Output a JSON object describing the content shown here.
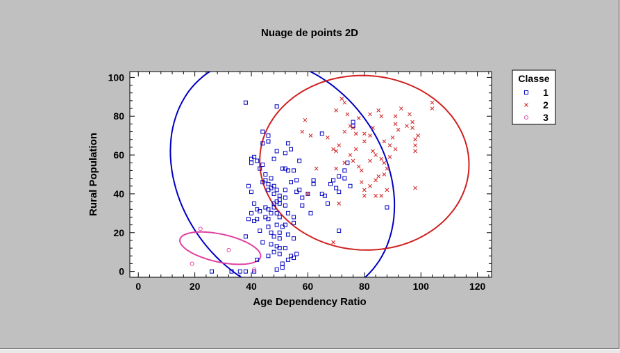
{
  "chart_data": {
    "type": "scatter",
    "title": "Nuage de points 2D",
    "xlabel": "Age Dependency Ratio",
    "ylabel": "Rural Population",
    "xlim": [
      -3,
      125
    ],
    "ylim": [
      -3,
      103
    ],
    "xticks": [
      0,
      20,
      40,
      60,
      80,
      100,
      120
    ],
    "yticks": [
      0,
      20,
      40,
      60,
      80,
      100
    ],
    "grid": false,
    "legend": {
      "title": "Classe",
      "position": "right"
    },
    "series": [
      {
        "name": "1",
        "marker": "square",
        "color": "#0000c0",
        "points": [
          [
            38,
            87
          ],
          [
            49,
            85
          ],
          [
            44,
            72
          ],
          [
            46,
            70
          ],
          [
            46,
            67
          ],
          [
            44,
            66
          ],
          [
            53,
            66
          ],
          [
            54,
            63
          ],
          [
            49,
            62
          ],
          [
            52,
            61
          ],
          [
            57,
            57
          ],
          [
            40,
            58
          ],
          [
            41,
            59
          ],
          [
            42,
            57
          ],
          [
            43,
            53
          ],
          [
            44,
            55
          ],
          [
            40,
            56
          ],
          [
            48,
            58
          ],
          [
            51,
            53
          ],
          [
            53,
            52
          ],
          [
            55,
            52
          ],
          [
            45,
            50
          ],
          [
            45,
            47
          ],
          [
            44,
            46
          ],
          [
            46,
            45
          ],
          [
            48,
            44
          ],
          [
            47,
            43
          ],
          [
            46,
            42
          ],
          [
            49,
            42
          ],
          [
            52,
            42
          ],
          [
            48,
            40
          ],
          [
            50,
            39
          ],
          [
            52,
            38
          ],
          [
            50,
            37
          ],
          [
            49,
            36
          ],
          [
            48,
            35
          ],
          [
            50,
            35
          ],
          [
            48,
            33
          ],
          [
            45,
            33
          ],
          [
            46,
            32
          ],
          [
            42,
            32
          ],
          [
            43,
            31
          ],
          [
            47,
            30
          ],
          [
            49,
            30
          ],
          [
            53,
            30
          ],
          [
            50,
            28
          ],
          [
            45,
            28
          ],
          [
            46,
            27
          ],
          [
            42,
            27
          ],
          [
            41,
            26
          ],
          [
            39,
            27
          ],
          [
            49,
            24
          ],
          [
            52,
            24
          ],
          [
            55,
            25
          ],
          [
            51,
            23
          ],
          [
            46,
            23
          ],
          [
            43,
            21
          ],
          [
            47,
            20
          ],
          [
            50,
            20
          ],
          [
            53,
            19
          ],
          [
            48,
            18
          ],
          [
            50,
            17
          ],
          [
            55,
            17
          ],
          [
            44,
            15
          ],
          [
            47,
            14
          ],
          [
            49,
            13
          ],
          [
            50,
            12
          ],
          [
            52,
            12
          ],
          [
            48,
            10
          ],
          [
            50,
            9
          ],
          [
            56,
            9
          ],
          [
            46,
            8
          ],
          [
            54,
            8
          ],
          [
            55,
            7
          ],
          [
            53,
            6
          ],
          [
            42,
            6
          ],
          [
            51,
            4
          ],
          [
            51,
            2
          ],
          [
            49,
            1
          ],
          [
            38,
            18
          ],
          [
            39,
            44
          ],
          [
            40,
            41
          ],
          [
            41,
            35
          ],
          [
            40,
            30
          ],
          [
            56,
            41
          ],
          [
            58,
            38
          ],
          [
            61,
            30
          ],
          [
            58,
            34
          ],
          [
            57,
            42
          ],
          [
            60,
            40
          ],
          [
            62,
            45
          ],
          [
            62,
            47
          ],
          [
            65,
            40
          ],
          [
            66,
            39
          ],
          [
            67,
            35
          ],
          [
            68,
            45
          ],
          [
            69,
            47
          ],
          [
            70,
            43
          ],
          [
            71,
            41
          ],
          [
            71,
            49
          ],
          [
            73,
            48
          ],
          [
            75,
            44
          ],
          [
            73,
            52
          ],
          [
            74,
            56
          ],
          [
            76,
            77
          ],
          [
            76,
            75
          ],
          [
            65,
            71
          ],
          [
            71,
            21
          ],
          [
            88,
            33
          ],
          [
            55,
            28
          ],
          [
            26,
            0
          ],
          [
            33,
            0
          ],
          [
            36,
            0
          ],
          [
            38,
            0
          ],
          [
            41,
            0
          ],
          [
            52,
            34
          ],
          [
            54,
            46
          ],
          [
            47,
            48
          ],
          [
            52,
            53
          ],
          [
            56,
            47
          ]
        ]
      },
      {
        "name": "2",
        "marker": "x",
        "color": "#d02020",
        "points": [
          [
            72,
            89
          ],
          [
            73,
            87
          ],
          [
            70,
            83
          ],
          [
            74,
            81
          ],
          [
            78,
            79
          ],
          [
            82,
            81
          ],
          [
            85,
            83
          ],
          [
            86,
            80
          ],
          [
            83,
            74
          ],
          [
            80,
            71
          ],
          [
            75,
            75
          ],
          [
            76,
            74
          ],
          [
            73,
            72
          ],
          [
            67,
            69
          ],
          [
            58,
            72
          ],
          [
            59,
            78
          ],
          [
            61,
            70
          ],
          [
            69,
            63
          ],
          [
            70,
            62
          ],
          [
            75,
            60
          ],
          [
            76,
            57
          ],
          [
            77,
            63
          ],
          [
            78,
            54
          ],
          [
            79,
            52
          ],
          [
            82,
            57
          ],
          [
            83,
            62
          ],
          [
            84,
            60
          ],
          [
            86,
            58
          ],
          [
            87,
            56
          ],
          [
            88,
            53
          ],
          [
            85,
            49
          ],
          [
            84,
            47
          ],
          [
            82,
            44
          ],
          [
            80,
            42
          ],
          [
            80,
            39
          ],
          [
            84,
            39
          ],
          [
            86,
            39
          ],
          [
            88,
            42
          ],
          [
            91,
            76
          ],
          [
            91,
            80
          ],
          [
            93,
            84
          ],
          [
            95,
            75
          ],
          [
            96,
            81
          ],
          [
            97,
            74
          ],
          [
            98,
            68
          ],
          [
            98,
            65
          ],
          [
            98,
            62
          ],
          [
            99,
            70
          ],
          [
            104,
            87
          ],
          [
            104,
            84
          ],
          [
            90,
            69
          ],
          [
            89,
            65
          ],
          [
            87,
            67
          ],
          [
            89,
            59
          ],
          [
            91,
            63
          ],
          [
            92,
            73
          ],
          [
            97,
            77
          ],
          [
            98,
            43
          ],
          [
            87,
            50
          ],
          [
            70,
            53
          ],
          [
            71,
            35
          ],
          [
            69,
            15
          ],
          [
            60,
            40
          ],
          [
            63,
            53
          ],
          [
            73,
            56
          ],
          [
            71,
            65
          ],
          [
            80,
            67
          ],
          [
            82,
            70
          ],
          [
            77,
            71
          ],
          [
            79,
            46
          ]
        ]
      },
      {
        "name": "3",
        "marker": "circle",
        "color": "#e040a0",
        "points": [
          [
            22,
            22
          ],
          [
            32,
            11
          ],
          [
            19,
            4
          ],
          [
            41,
            1
          ]
        ]
      }
    ],
    "ellipses": [
      {
        "class": "1",
        "color": "#0000c0",
        "cx": 51,
        "cy": 48,
        "rx": 38,
        "ry": 63,
        "angle_deg": 13
      },
      {
        "class": "2",
        "color": "#d02020",
        "cx": 80,
        "cy": 56,
        "rx": 37,
        "ry": 45,
        "angle_deg": 3
      },
      {
        "class": "3",
        "color": "#e040a0",
        "cx": 29,
        "cy": 12,
        "rx": 15,
        "ry": 7,
        "angle_deg": -20
      }
    ]
  }
}
